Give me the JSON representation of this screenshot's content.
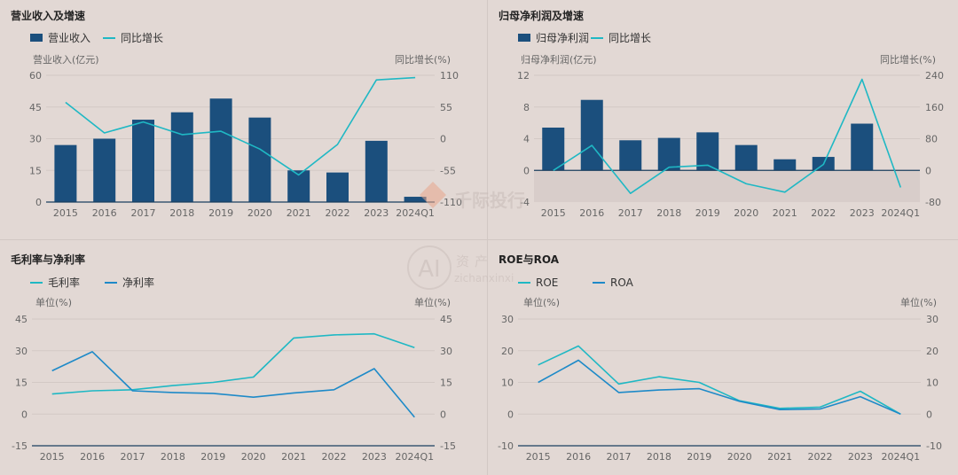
{
  "colors": {
    "bar": "#1b4f7d",
    "line_teal": "#1fb8c4",
    "line_blue": "#1e8ac8",
    "axis": "#1b3f5f",
    "grid": "#d3c9c5",
    "text": "#666666",
    "title": "#222222",
    "shade": "#d8cdca"
  },
  "watermarks": {
    "brand": "千际投行",
    "site_cn": "资产",
    "site_en": "zichanxinxi"
  },
  "chart_data": [
    {
      "id": "revenue",
      "type": "bar+line",
      "title": "营业收入及增速",
      "legend": [
        "营业收入",
        "同比增长"
      ],
      "ylabel_left": "营业收入(亿元)",
      "ylabel_right": "同比增长(%)",
      "categories": [
        "2015",
        "2016",
        "2017",
        "2018",
        "2019",
        "2020",
        "2021",
        "2022",
        "2023",
        "2024Q1"
      ],
      "left_ticks": [
        "60",
        "45",
        "30",
        "15",
        "0"
      ],
      "right_ticks": [
        "110",
        "55",
        "0",
        "-55",
        "-110"
      ],
      "ylim_left": [
        0,
        60
      ],
      "ylim_right": [
        -110,
        110
      ],
      "bars": [
        27,
        30,
        39,
        42.5,
        49,
        40,
        15,
        14,
        29,
        2.5
      ],
      "line": [
        63,
        10,
        29,
        7,
        13,
        -18,
        -63,
        -10,
        102,
        106
      ]
    },
    {
      "id": "profit",
      "type": "bar+line",
      "title": "归母净利润及增速",
      "legend": [
        "归母净利润",
        "同比增长"
      ],
      "ylabel_left": "归母净利润(亿元)",
      "ylabel_right": "同比增长(%)",
      "categories": [
        "2015",
        "2016",
        "2017",
        "2018",
        "2019",
        "2020",
        "2021",
        "2022",
        "2023",
        "2024Q1"
      ],
      "left_ticks": [
        "12",
        "8",
        "4",
        "0",
        "-4"
      ],
      "right_ticks": [
        "240",
        "160",
        "80",
        "0",
        "-80"
      ],
      "ylim_left": [
        -4,
        12
      ],
      "ylim_right": [
        -80,
        240
      ],
      "bars": [
        5.4,
        8.9,
        3.8,
        4.1,
        4.8,
        3.2,
        1.4,
        1.7,
        5.9,
        0
      ],
      "line": [
        0,
        63,
        -58,
        8,
        13,
        -34,
        -55,
        15,
        230,
        -43
      ]
    },
    {
      "id": "margin",
      "type": "line",
      "title": "毛利率与净利率",
      "legend": [
        "毛利率",
        "净利率"
      ],
      "ylabel_left": "单位(%)",
      "ylabel_right": "单位(%)",
      "categories": [
        "2015",
        "2016",
        "2017",
        "2018",
        "2019",
        "2020",
        "2021",
        "2022",
        "2023",
        "2024Q1"
      ],
      "left_ticks": [
        "45",
        "30",
        "15",
        "0",
        "-15"
      ],
      "right_ticks": [
        "45",
        "30",
        "15",
        "0",
        "-15"
      ],
      "ylim_left": [
        -15,
        45
      ],
      "series": [
        {
          "name": "毛利率",
          "values": [
            9.5,
            11,
            11.5,
            13.5,
            15,
            17.5,
            36,
            37.5,
            38,
            31.5
          ]
        },
        {
          "name": "净利率",
          "values": [
            20.5,
            29.5,
            11,
            10.2,
            9.8,
            8,
            10,
            11.5,
            21.5,
            -1.5
          ]
        }
      ]
    },
    {
      "id": "roe",
      "type": "line",
      "title": "ROE与ROA",
      "legend": [
        "ROE",
        "ROA"
      ],
      "ylabel_left": "单位(%)",
      "ylabel_right": "单位(%)",
      "categories": [
        "2015",
        "2016",
        "2017",
        "2018",
        "2019",
        "2020",
        "2021",
        "2022",
        "2023",
        "2024Q1"
      ],
      "left_ticks": [
        "30",
        "20",
        "10",
        "0",
        "-10"
      ],
      "right_ticks": [
        "30",
        "20",
        "10",
        "0",
        "-10"
      ],
      "ylim_left": [
        -10,
        30
      ],
      "series": [
        {
          "name": "ROE",
          "values": [
            15.5,
            21.5,
            9.5,
            11.8,
            10,
            4.2,
            1.8,
            2.2,
            7.2,
            0
          ]
        },
        {
          "name": "ROA",
          "values": [
            10,
            17,
            6.8,
            7.6,
            8,
            4,
            1.4,
            1.6,
            5.5,
            0
          ]
        }
      ]
    }
  ]
}
